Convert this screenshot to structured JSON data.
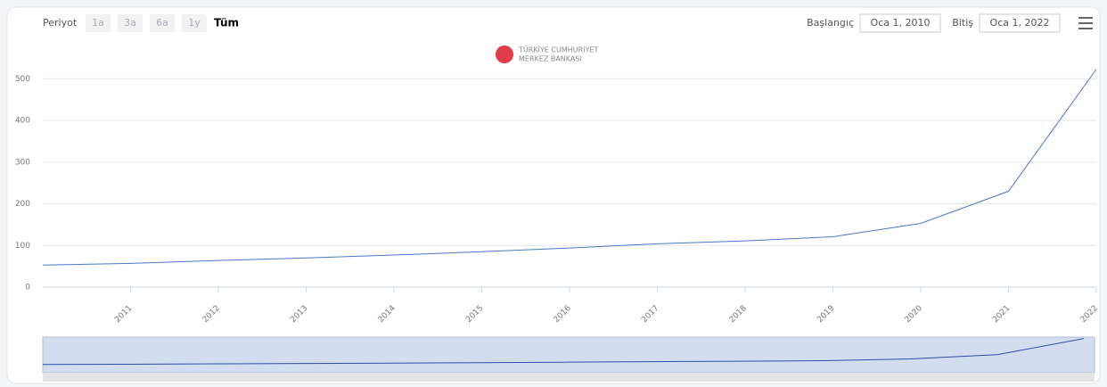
{
  "toolbar": {
    "period_label": "Periyot",
    "buttons": [
      "1a",
      "3a",
      "6a",
      "1y",
      "Tüm"
    ],
    "start_label": "Başlangıç",
    "start_date": "Oca 1, 2010",
    "end_label": "Bitiş",
    "end_date": "Oca 1, 2022"
  },
  "logo": {
    "line1": "TÜRKİYE CUMHURİYET",
    "line2": "MERKEZ BANKASI"
  },
  "chart_data": {
    "type": "line",
    "x": [
      2010,
      2011,
      2012,
      2013,
      2014,
      2015,
      2016,
      2017,
      2018,
      2019,
      2020,
      2021,
      2022
    ],
    "series": [
      {
        "color": "#4a78c8",
        "values": [
          53,
          57,
          64,
          70,
          77,
          85,
          94,
          104,
          111,
          121,
          153,
          230,
          523
        ]
      }
    ],
    "xlim": [
      2010,
      2022
    ],
    "xticks": [
      2011,
      2012,
      2013,
      2014,
      2015,
      2016,
      2017,
      2018,
      2019,
      2020,
      2021,
      2022
    ],
    "ylim": [
      0,
      550
    ],
    "yticks": [
      0,
      100,
      200,
      300,
      400,
      500
    ],
    "grid": true
  }
}
